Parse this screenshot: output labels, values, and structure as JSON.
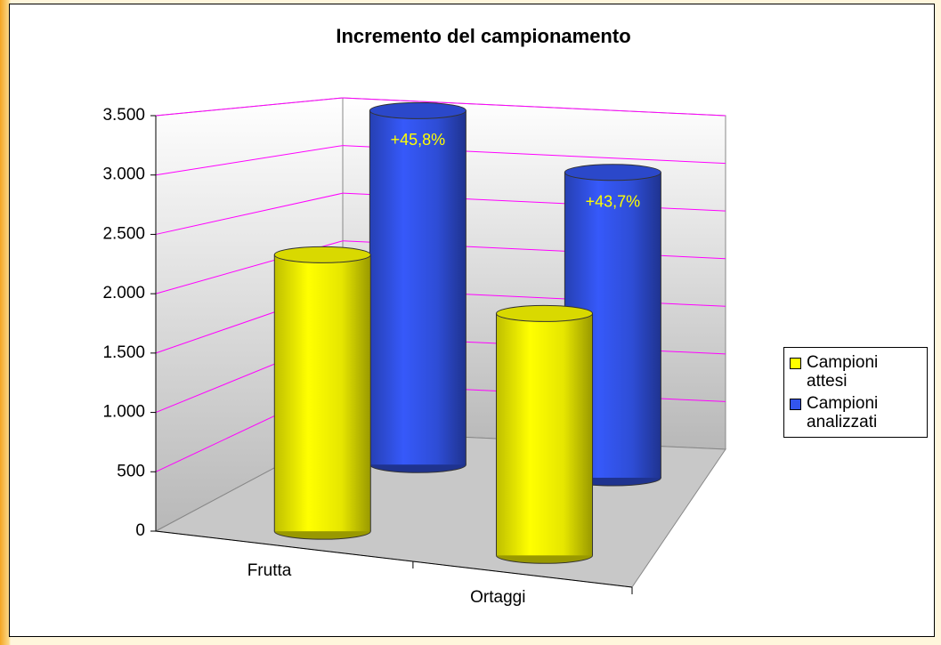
{
  "chart_data": {
    "type": "bar3d",
    "title": "Incremento del campionamento",
    "categories": [
      "Frutta",
      "Ortaggi"
    ],
    "series": [
      {
        "name": "Campioni attesi",
        "color": "#ffff00",
        "values": [
          2400,
          2100
        ]
      },
      {
        "name": "Campioni analizzati",
        "color": "#3355ee",
        "values": [
          3499,
          3018
        ]
      }
    ],
    "annotations": [
      "+45,8%",
      "+43,7%"
    ],
    "ylim": [
      0,
      3500
    ],
    "yticks": [
      0,
      500,
      {
        "value": 1000,
        "label": "1.000"
      },
      {
        "value": 1500,
        "label": "1.500"
      },
      {
        "value": 2000,
        "label": "2.000"
      },
      {
        "value": 2500,
        "label": "2.500"
      },
      {
        "value": 3000,
        "label": "3.000"
      },
      {
        "value": 3500,
        "label": "3.500"
      }
    ],
    "grid": true,
    "grid_color": "#ff00ff",
    "legend": "right"
  }
}
